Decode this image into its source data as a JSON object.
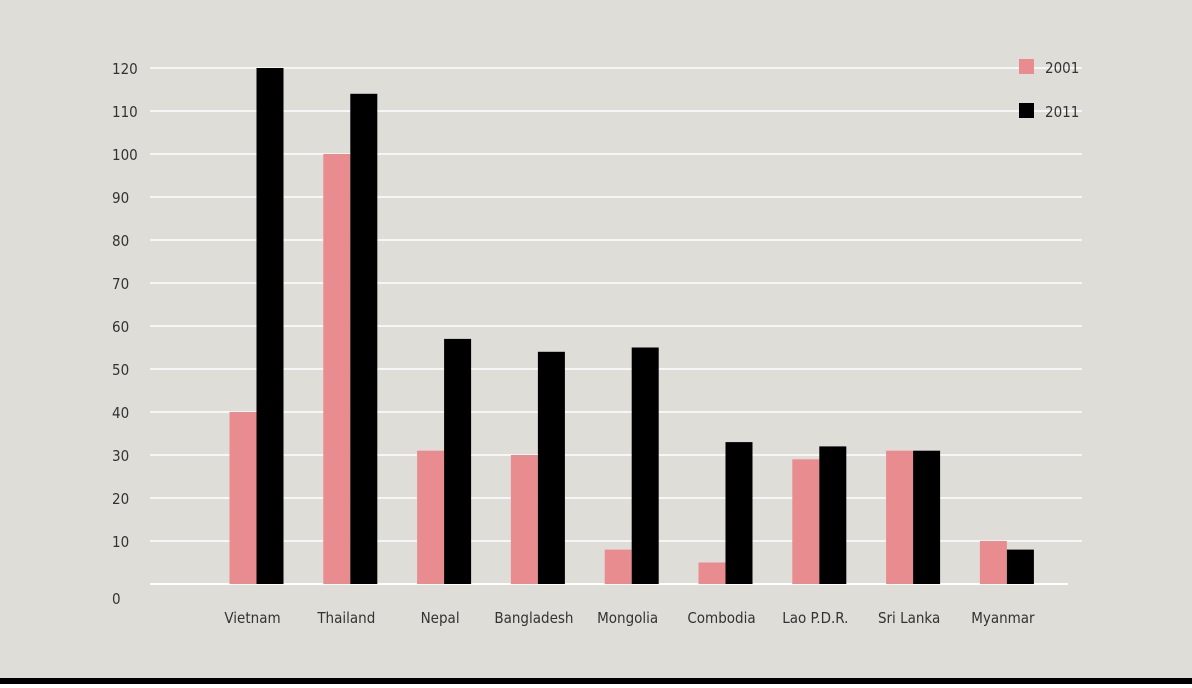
{
  "colors": {
    "background": "#dfddd8",
    "gridline": "#ffffff",
    "series_2001": "#e98c8f",
    "series_2011": "#000000"
  },
  "chart_data": {
    "type": "bar",
    "categories": [
      "Vietnam",
      "Thailand",
      "Nepal",
      "Bangladesh",
      "Mongolia",
      "Combodia",
      "Lao P.D.R.",
      "Sri Lanka",
      "Myanmar"
    ],
    "series": [
      {
        "name": "2001",
        "values": [
          40,
          100,
          31,
          30,
          8,
          5,
          29,
          31,
          10
        ]
      },
      {
        "name": "2011",
        "values": [
          120,
          114,
          57,
          54,
          55,
          33,
          32,
          31,
          8
        ]
      }
    ],
    "yticks": [
      "0",
      "10",
      "20",
      "30",
      "40",
      "50",
      "60",
      "70",
      "80",
      "90",
      "100",
      "110",
      "120"
    ],
    "ylim": [
      0,
      121
    ],
    "grid": true,
    "legend_position": "top-right"
  }
}
